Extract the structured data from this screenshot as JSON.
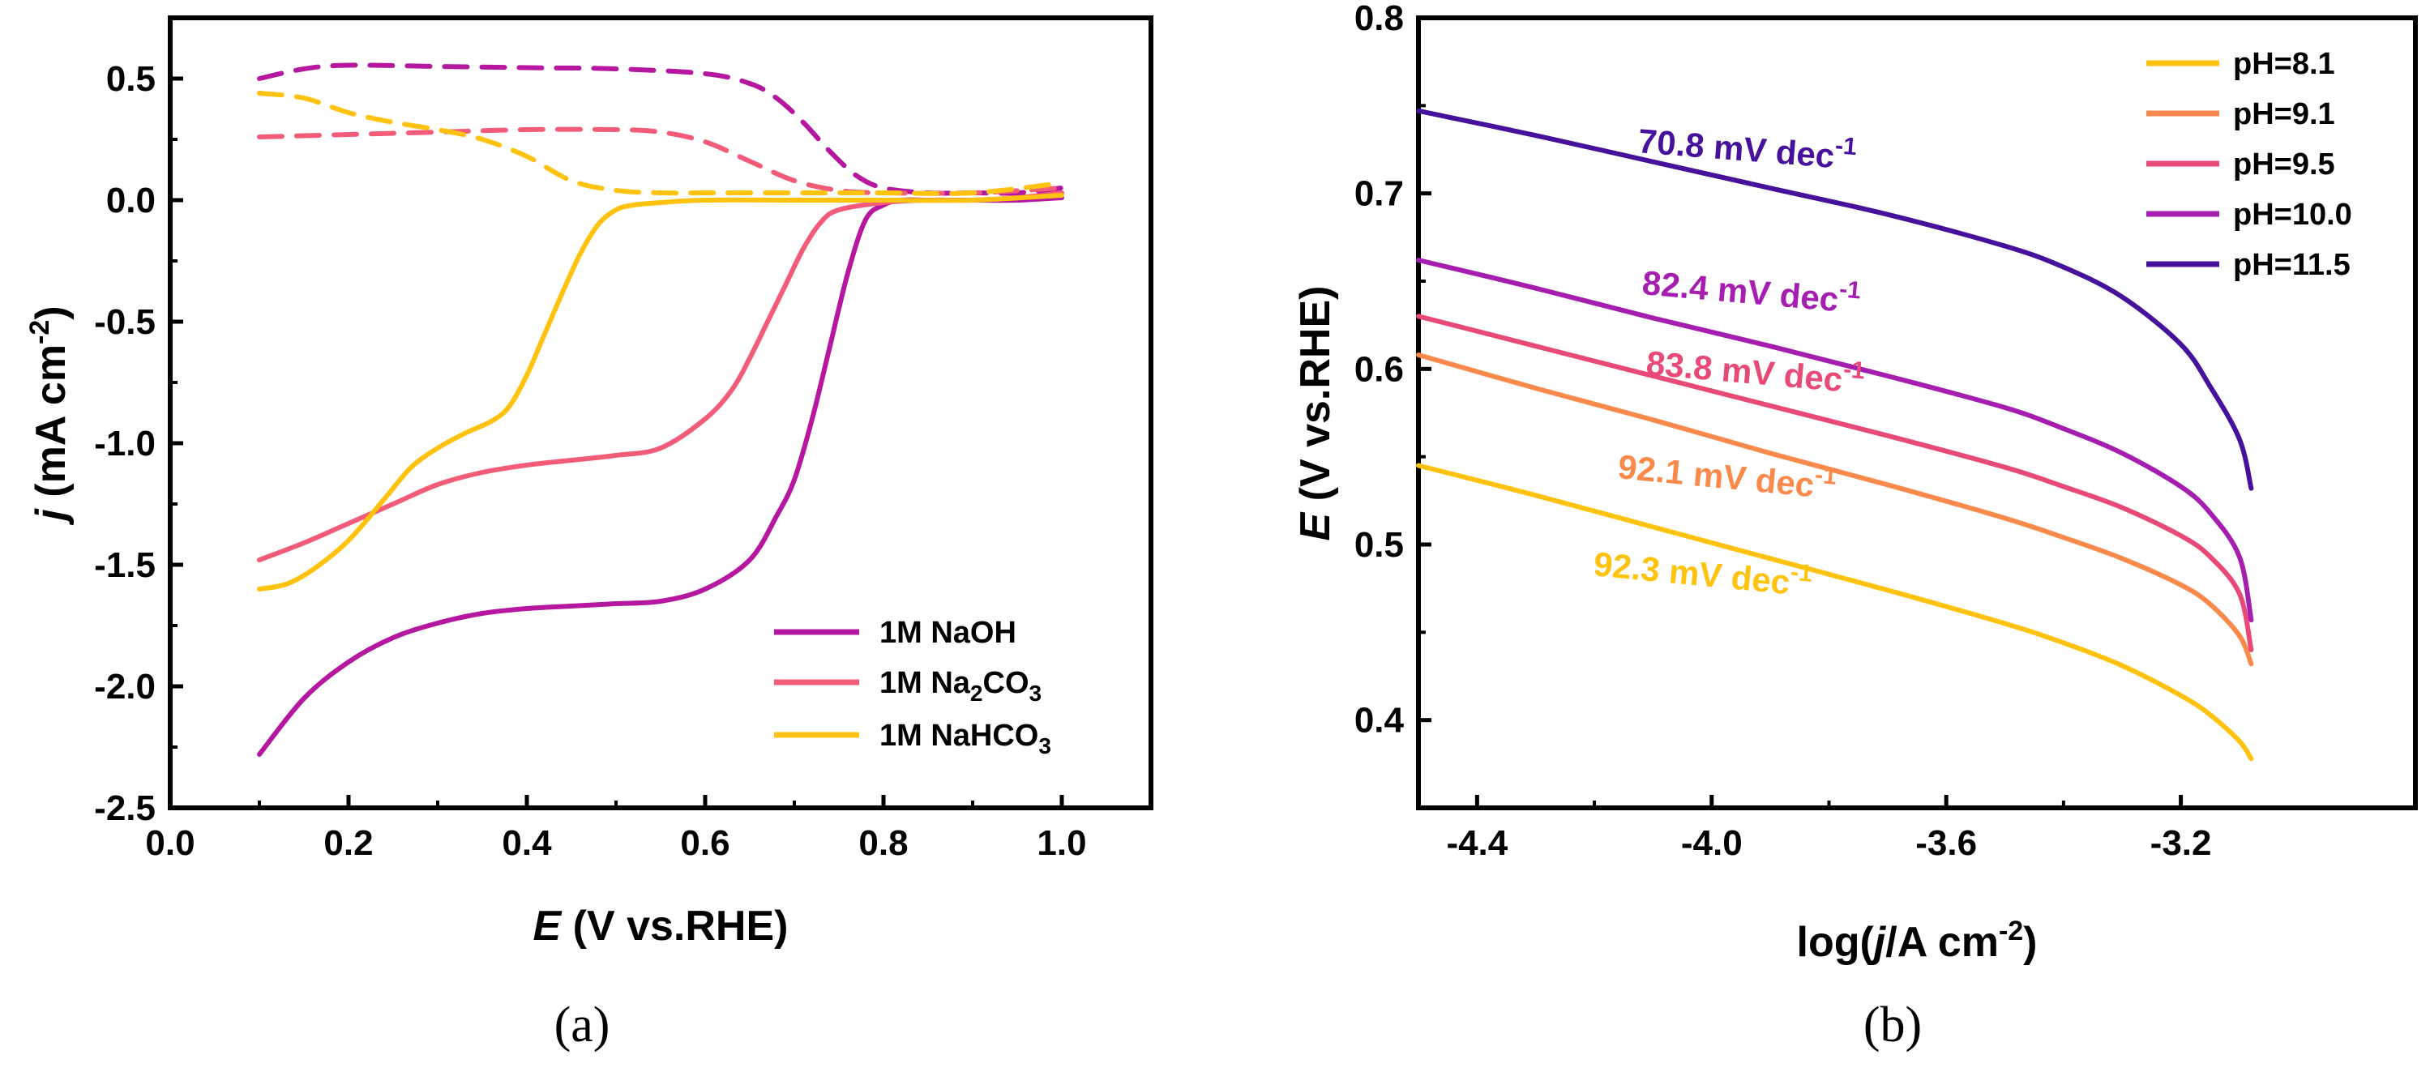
{
  "chart_data": [
    {
      "type": "line",
      "panel": "(a)",
      "xlabel_italic": "E",
      "xlabel_rest": " (V vs.RHE)",
      "ylabel_italic": "j",
      "ylabel_rest": " (mA cm",
      "ylabel_sup": "-2",
      "ylabel_close": ")",
      "xlim": [
        0.0,
        1.1
      ],
      "ylim": [
        -2.5,
        0.75
      ],
      "xticks": [
        0.0,
        0.2,
        0.4,
        0.6,
        0.8,
        1.0
      ],
      "xtick_labels": [
        "0.0",
        "0.2",
        "0.4",
        "0.6",
        "0.8",
        "1.0"
      ],
      "yticks": [
        0.5,
        0.0,
        -0.5,
        -1.0,
        -1.5,
        -2.0,
        -2.5
      ],
      "ytick_labels": [
        "0.5",
        "0.0",
        "-0.5",
        "-1.0",
        "-1.5",
        "-2.0",
        "-2.5"
      ],
      "legend_position": "bottom-right",
      "series": [
        {
          "name": "1M NaOH",
          "legend_main": "1M NaOH",
          "legend_sub": "",
          "legend_tail": "",
          "color": "#b5179e",
          "style": "solid",
          "x": [
            0.1,
            0.15,
            0.2,
            0.25,
            0.3,
            0.35,
            0.4,
            0.45,
            0.5,
            0.55,
            0.6,
            0.65,
            0.68,
            0.7,
            0.72,
            0.74,
            0.76,
            0.78,
            0.8,
            0.82,
            0.85,
            0.9,
            0.95,
            1.0
          ],
          "y": [
            -2.28,
            -2.05,
            -1.9,
            -1.8,
            -1.74,
            -1.7,
            -1.68,
            -1.67,
            -1.66,
            -1.65,
            -1.6,
            -1.48,
            -1.3,
            -1.15,
            -0.9,
            -0.6,
            -0.3,
            -0.08,
            -0.02,
            0.0,
            0.0,
            0.0,
            0.0,
            0.01
          ]
        },
        {
          "name": "1M Na2CO3",
          "legend_main": "1M Na",
          "legend_sub": "2",
          "legend_tail": "CO",
          "legend_sub2": "3",
          "color": "#f25c78",
          "style": "solid",
          "x": [
            0.1,
            0.15,
            0.2,
            0.25,
            0.3,
            0.35,
            0.4,
            0.45,
            0.5,
            0.55,
            0.6,
            0.63,
            0.65,
            0.67,
            0.69,
            0.71,
            0.73,
            0.75,
            0.8,
            0.85,
            0.9,
            0.95,
            1.0
          ],
          "y": [
            -1.48,
            -1.41,
            -1.33,
            -1.25,
            -1.17,
            -1.12,
            -1.09,
            -1.07,
            -1.05,
            -1.02,
            -0.9,
            -0.78,
            -0.65,
            -0.5,
            -0.35,
            -0.2,
            -0.09,
            -0.04,
            -0.01,
            0.0,
            0.0,
            0.01,
            0.03
          ]
        },
        {
          "name": "1M NaHCO3",
          "legend_main": "1M NaHCO",
          "legend_sub": "3",
          "legend_tail": "",
          "color": "#ffc20e",
          "style": "solid",
          "x": [
            0.1,
            0.13,
            0.16,
            0.2,
            0.24,
            0.27,
            0.3,
            0.33,
            0.36,
            0.38,
            0.4,
            0.42,
            0.44,
            0.46,
            0.48,
            0.5,
            0.52,
            0.55,
            0.6,
            0.7,
            0.8,
            0.9,
            1.0
          ],
          "y": [
            -1.6,
            -1.58,
            -1.52,
            -1.4,
            -1.23,
            -1.1,
            -1.02,
            -0.96,
            -0.91,
            -0.85,
            -0.72,
            -0.55,
            -0.38,
            -0.22,
            -0.1,
            -0.04,
            -0.02,
            -0.01,
            0.0,
            0.0,
            0.0,
            0.0,
            0.02
          ]
        },
        {
          "name": "1M NaOH (anodic)",
          "color": "#b5179e",
          "style": "dashed",
          "x": [
            0.1,
            0.15,
            0.2,
            0.3,
            0.4,
            0.5,
            0.6,
            0.65,
            0.68,
            0.71,
            0.74,
            0.77,
            0.8,
            0.85,
            0.9,
            0.95,
            1.0
          ],
          "y": [
            0.5,
            0.54,
            0.555,
            0.55,
            0.545,
            0.54,
            0.52,
            0.48,
            0.42,
            0.32,
            0.2,
            0.1,
            0.05,
            0.03,
            0.03,
            0.03,
            0.05
          ]
        },
        {
          "name": "1M Na2CO3 (anodic)",
          "color": "#f25c78",
          "style": "dashed",
          "x": [
            0.1,
            0.2,
            0.3,
            0.4,
            0.5,
            0.55,
            0.6,
            0.65,
            0.7,
            0.75,
            0.8,
            0.9,
            1.0
          ],
          "y": [
            0.26,
            0.27,
            0.28,
            0.29,
            0.29,
            0.28,
            0.24,
            0.16,
            0.08,
            0.04,
            0.03,
            0.03,
            0.05
          ]
        },
        {
          "name": "1M NaHCO3 (anodic)",
          "color": "#ffc20e",
          "style": "dashed",
          "x": [
            0.1,
            0.15,
            0.2,
            0.25,
            0.3,
            0.35,
            0.4,
            0.45,
            0.5,
            0.55,
            0.6,
            0.7,
            0.8,
            0.9,
            1.0
          ],
          "y": [
            0.44,
            0.42,
            0.36,
            0.32,
            0.29,
            0.25,
            0.18,
            0.08,
            0.04,
            0.03,
            0.03,
            0.03,
            0.03,
            0.03,
            0.07
          ]
        }
      ]
    },
    {
      "type": "line",
      "panel": "(b)",
      "xlabel_pre": "log(",
      "xlabel_italic": "j",
      "xlabel_rest": "/A cm",
      "xlabel_sup": "-2",
      "xlabel_close": ")",
      "ylabel_italic": "E",
      "ylabel_rest": " (V vs.RHE)",
      "xlim": [
        -4.5,
        -2.8
      ],
      "ylim": [
        0.35,
        0.8
      ],
      "xticks": [
        -4.4,
        -4.0,
        -3.6,
        -3.2
      ],
      "xtick_labels": [
        "-4.4",
        "-4.0",
        "-3.6",
        "-3.2"
      ],
      "yticks": [
        0.4,
        0.5,
        0.6,
        0.7,
        0.8
      ],
      "ytick_labels": [
        "0.4",
        "0.5",
        "0.6",
        "0.7",
        "0.8"
      ],
      "legend_position": "top-right",
      "series": [
        {
          "name": "pH=8.1",
          "color": "#ffc20e",
          "x": [
            -4.5,
            -4.3,
            -4.1,
            -3.9,
            -3.7,
            -3.5,
            -3.4,
            -3.3,
            -3.2,
            -3.15,
            -3.1,
            -3.08
          ],
          "y": [
            0.545,
            0.528,
            0.51,
            0.492,
            0.474,
            0.455,
            0.444,
            0.431,
            0.414,
            0.403,
            0.388,
            0.378
          ]
        },
        {
          "name": "pH=9.1",
          "color": "#f98a4b",
          "x": [
            -4.5,
            -4.3,
            -4.1,
            -3.9,
            -3.7,
            -3.5,
            -3.4,
            -3.3,
            -3.2,
            -3.15,
            -3.1,
            -3.08
          ],
          "y": [
            0.608,
            0.589,
            0.571,
            0.552,
            0.534,
            0.515,
            0.504,
            0.492,
            0.477,
            0.466,
            0.448,
            0.432
          ]
        },
        {
          "name": "pH=9.5",
          "color": "#e84a78",
          "x": [
            -4.5,
            -4.3,
            -4.1,
            -3.9,
            -3.7,
            -3.5,
            -3.4,
            -3.3,
            -3.2,
            -3.15,
            -3.1,
            -3.08
          ],
          "y": [
            0.63,
            0.613,
            0.596,
            0.579,
            0.562,
            0.544,
            0.533,
            0.521,
            0.505,
            0.493,
            0.472,
            0.44
          ]
        },
        {
          "name": "pH=10.0",
          "color": "#a51eb0",
          "x": [
            -4.5,
            -4.3,
            -4.1,
            -3.9,
            -3.7,
            -3.5,
            -3.4,
            -3.3,
            -3.2,
            -3.15,
            -3.1,
            -3.08
          ],
          "y": [
            0.662,
            0.646,
            0.629,
            0.613,
            0.596,
            0.578,
            0.566,
            0.552,
            0.533,
            0.518,
            0.493,
            0.457
          ]
        },
        {
          "name": "pH=11.5",
          "color": "#46129c",
          "x": [
            -4.5,
            -4.3,
            -4.1,
            -3.9,
            -3.7,
            -3.5,
            -3.4,
            -3.3,
            -3.2,
            -3.15,
            -3.1,
            -3.08
          ],
          "y": [
            0.747,
            0.733,
            0.718,
            0.703,
            0.688,
            0.67,
            0.658,
            0.641,
            0.614,
            0.59,
            0.56,
            0.532
          ]
        }
      ],
      "annotations": [
        {
          "pre": "70.8 mV dec",
          "sup": "-1",
          "color": "#46129c"
        },
        {
          "pre": "82.4 mV dec",
          "sup": "-1",
          "color": "#a51eb0"
        },
        {
          "pre": "83.8 mV dec",
          "sup": "-1",
          "color": "#e84a78"
        },
        {
          "pre": "92.1 mV dec",
          "sup": "-1",
          "color": "#f98a4b"
        },
        {
          "pre": "92.3 mV dec",
          "sup": "-1",
          "color": "#ffc20e"
        }
      ]
    }
  ],
  "captions": {
    "a": "(a)",
    "b": "(b)"
  }
}
